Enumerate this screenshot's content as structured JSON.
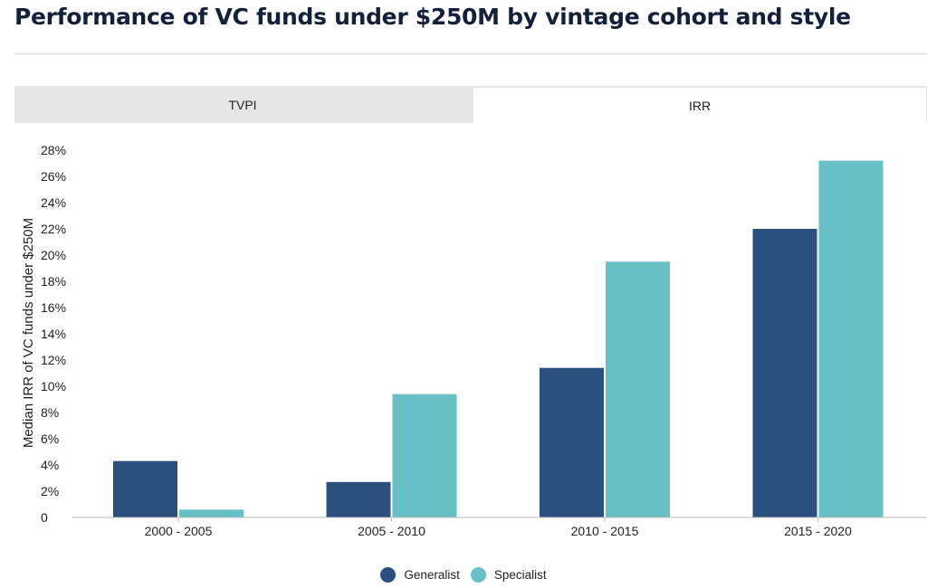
{
  "title": "Performance of VC funds under $250M by vintage cohort and style",
  "tabs": [
    {
      "label": "TVPI",
      "active": false
    },
    {
      "label": "IRR",
      "active": true
    }
  ],
  "colors": {
    "generalist": "#2b507f",
    "specialist": "#66c0c6",
    "axis": "#bdbdbd"
  },
  "chart_data": {
    "type": "bar",
    "categories": [
      "2000 - 2005",
      "2005 - 2010",
      "2010 - 2015",
      "2015 - 2020"
    ],
    "series": [
      {
        "name": "Generalist",
        "values": [
          4.3,
          2.7,
          11.4,
          22.0
        ]
      },
      {
        "name": "Specialist",
        "values": [
          0.6,
          9.4,
          19.5,
          27.2
        ]
      }
    ],
    "ylabel": "Median IRR of VC funds under $250M",
    "xlabel": "",
    "ylim": [
      0,
      28
    ],
    "yticks": [
      "0",
      "2%",
      "4%",
      "6%",
      "8%",
      "10%",
      "12%",
      "14%",
      "16%",
      "18%",
      "20%",
      "22%",
      "24%",
      "26%",
      "28%"
    ],
    "legend_position": "bottom-center",
    "grid": false
  }
}
